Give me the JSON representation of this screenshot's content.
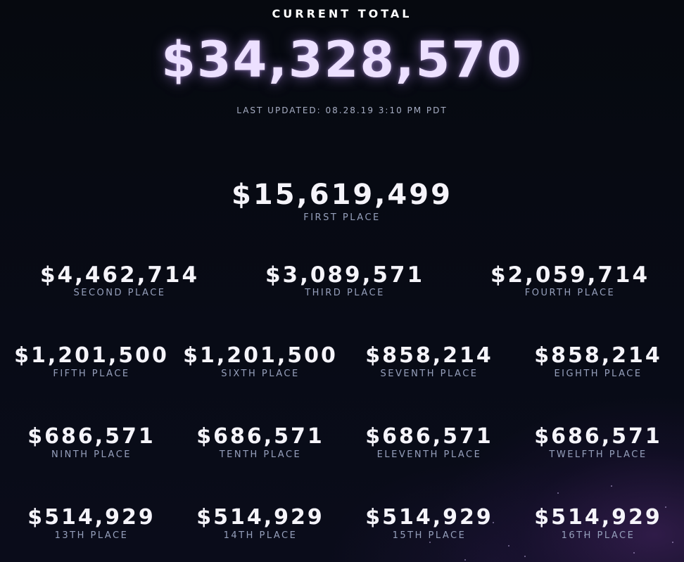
{
  "header": {
    "label": "CURRENT TOTAL",
    "total": "$34,328,570",
    "last_updated": "LAST UPDATED: 08.28.19 3:10 PM PDT"
  },
  "prizes": [
    {
      "amount": "$15,619,499",
      "place": "FIRST PLACE"
    },
    {
      "amount": "$4,462,714",
      "place": "SECOND PLACE"
    },
    {
      "amount": "$3,089,571",
      "place": "THIRD PLACE"
    },
    {
      "amount": "$2,059,714",
      "place": "FOURTH PLACE"
    },
    {
      "amount": "$1,201,500",
      "place": "FIFTH PLACE"
    },
    {
      "amount": "$1,201,500",
      "place": "SIXTH PLACE"
    },
    {
      "amount": "$858,214",
      "place": "SEVENTH PLACE"
    },
    {
      "amount": "$858,214",
      "place": "EIGHTH PLACE"
    },
    {
      "amount": "$686,571",
      "place": "NINTH PLACE"
    },
    {
      "amount": "$686,571",
      "place": "TENTH PLACE"
    },
    {
      "amount": "$686,571",
      "place": "ELEVENTH PLACE"
    },
    {
      "amount": "$686,571",
      "place": "TWELFTH PLACE"
    },
    {
      "amount": "$514,929",
      "place": "13TH PLACE"
    },
    {
      "amount": "$514,929",
      "place": "14TH PLACE"
    },
    {
      "amount": "$514,929",
      "place": "15TH PLACE"
    },
    {
      "amount": "$514,929",
      "place": "16TH PLACE"
    }
  ],
  "colors": {
    "background": "#070a14",
    "total_text": "#ece0ff",
    "amount_text": "#f5f4fa",
    "place_text": "#96a0bc"
  }
}
